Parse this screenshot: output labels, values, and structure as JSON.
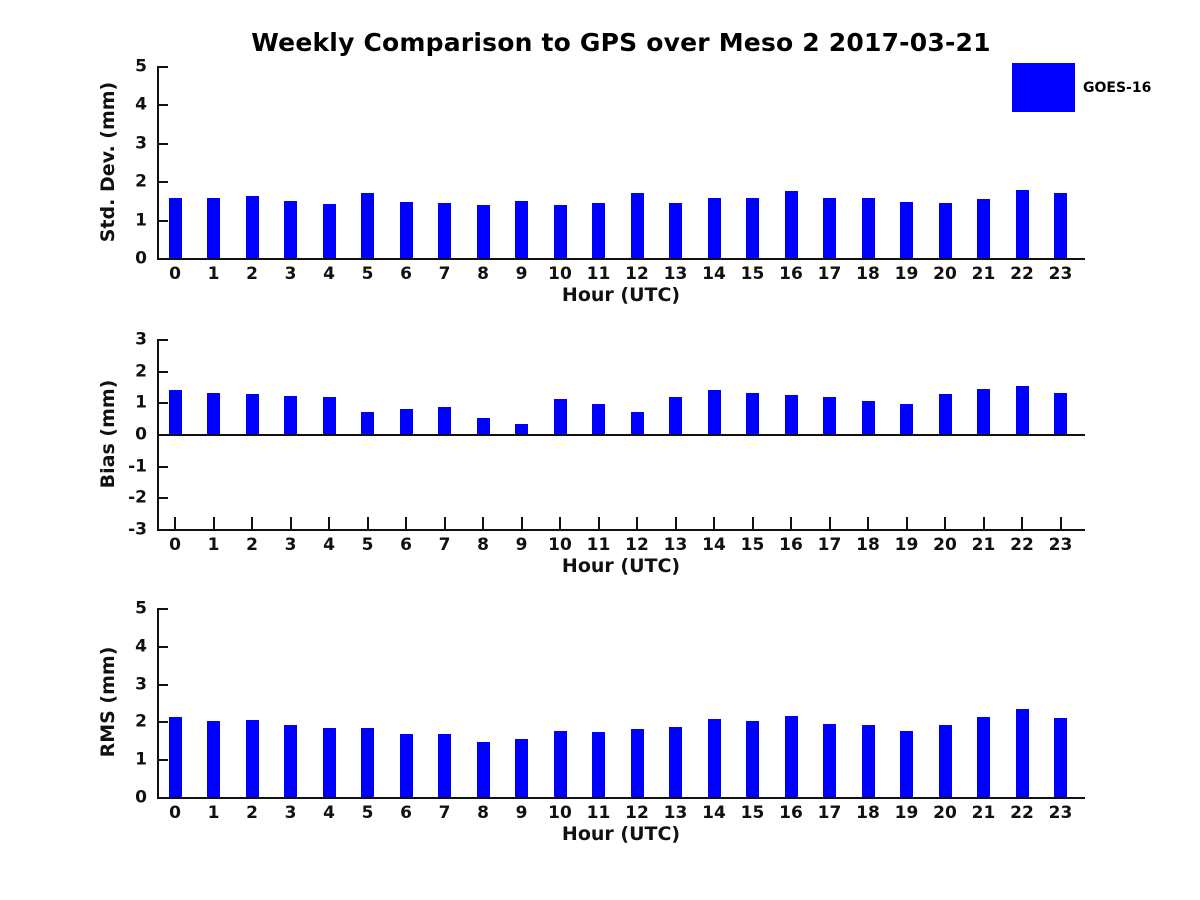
{
  "figure": {
    "title": "Weekly Comparison to GPS over Meso 2 2017-03-21",
    "legend": {
      "label": "GOES-16",
      "color": "#0000ff",
      "position": "upper right outside"
    },
    "background": "#ffffff"
  },
  "colors": {
    "bar": "#0000ff",
    "axis": "#111111",
    "text": "#000000"
  },
  "chart_data": [
    {
      "type": "bar",
      "title": "",
      "ylabel": "Std. Dev. (mm)",
      "xlabel": "Hour (UTC)",
      "ylim": [
        0,
        5
      ],
      "yticks": [
        0,
        1,
        2,
        3,
        4,
        5
      ],
      "grid": false,
      "categories": [
        "0",
        "1",
        "2",
        "3",
        "4",
        "5",
        "6",
        "7",
        "8",
        "9",
        "10",
        "11",
        "12",
        "13",
        "14",
        "15",
        "16",
        "17",
        "18",
        "19",
        "20",
        "21",
        "22",
        "23"
      ],
      "series": [
        {
          "name": "GOES-16",
          "values": [
            1.57,
            1.57,
            1.62,
            1.48,
            1.41,
            1.7,
            1.46,
            1.43,
            1.38,
            1.49,
            1.37,
            1.44,
            1.7,
            1.43,
            1.57,
            1.56,
            1.75,
            1.55,
            1.57,
            1.46,
            1.42,
            1.54,
            1.76,
            1.68
          ]
        }
      ]
    },
    {
      "type": "bar",
      "title": "",
      "ylabel": "Bias (mm)",
      "xlabel": "Hour (UTC)",
      "ylim": [
        -3,
        3
      ],
      "yticks": [
        -3,
        -2,
        -1,
        0,
        1,
        2,
        3
      ],
      "grid": false,
      "categories": [
        "0",
        "1",
        "2",
        "3",
        "4",
        "5",
        "6",
        "7",
        "8",
        "9",
        "10",
        "11",
        "12",
        "13",
        "14",
        "15",
        "16",
        "17",
        "18",
        "19",
        "20",
        "21",
        "22",
        "23"
      ],
      "series": [
        {
          "name": "GOES-16",
          "values": [
            1.4,
            1.3,
            1.26,
            1.2,
            1.16,
            0.7,
            0.78,
            0.85,
            0.5,
            0.32,
            1.12,
            0.96,
            0.7,
            1.18,
            1.38,
            1.28,
            1.22,
            1.18,
            1.05,
            0.96,
            1.26,
            1.43,
            1.53,
            1.28
          ]
        }
      ]
    },
    {
      "type": "bar",
      "title": "",
      "ylabel": "RMS (mm)",
      "xlabel": "Hour (UTC)",
      "ylim": [
        0,
        5
      ],
      "yticks": [
        0,
        1,
        2,
        3,
        4,
        5
      ],
      "grid": false,
      "categories": [
        "0",
        "1",
        "2",
        "3",
        "4",
        "5",
        "6",
        "7",
        "8",
        "9",
        "10",
        "11",
        "12",
        "13",
        "14",
        "15",
        "16",
        "17",
        "18",
        "19",
        "20",
        "21",
        "22",
        "23"
      ],
      "series": [
        {
          "name": "GOES-16",
          "values": [
            2.12,
            2.01,
            2.03,
            1.9,
            1.82,
            1.82,
            1.67,
            1.67,
            1.45,
            1.53,
            1.74,
            1.71,
            1.81,
            1.84,
            2.06,
            2.02,
            2.14,
            1.93,
            1.9,
            1.74,
            1.9,
            2.12,
            2.32,
            2.08
          ]
        }
      ]
    }
  ]
}
